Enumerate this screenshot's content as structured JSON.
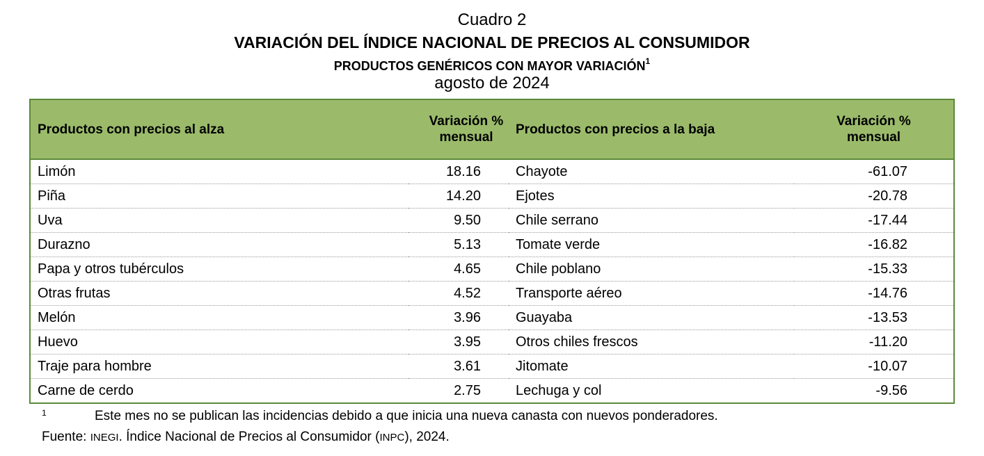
{
  "title": {
    "line1": "Cuadro 2",
    "line2": "VARIACIÓN DEL ÍNDICE NACIONAL DE PRECIOS AL CONSUMIDOR",
    "line3": "PRODUCTOS GENÉRICOS CON MAYOR VARIACIÓN",
    "line3_sup": "1",
    "line4": "agosto de 2024"
  },
  "table": {
    "headers": {
      "up_products": "Productos con precios al alza",
      "up_variation_l1": "Variación %",
      "up_variation_l2": "mensual",
      "down_products": "Productos con precios a la baja",
      "down_variation_l1": "Variación %",
      "down_variation_l2": "mensual"
    },
    "rows": [
      {
        "up": "Limón",
        "up_val": "18.16",
        "down": "Chayote",
        "down_val": "-61.07"
      },
      {
        "up": "Piña",
        "up_val": "14.20",
        "down": "Ejotes",
        "down_val": "-20.78"
      },
      {
        "up": "Uva",
        "up_val": "9.50",
        "down": "Chile serrano",
        "down_val": "-17.44"
      },
      {
        "up": "Durazno",
        "up_val": "5.13",
        "down": "Tomate verde",
        "down_val": "-16.82"
      },
      {
        "up": "Papa y otros tubérculos",
        "up_val": "4.65",
        "down": "Chile poblano",
        "down_val": "-15.33"
      },
      {
        "up": "Otras frutas",
        "up_val": "4.52",
        "down": "Transporte aéreo",
        "down_val": "-14.76"
      },
      {
        "up": "Melón",
        "up_val": "3.96",
        "down": "Guayaba",
        "down_val": "-13.53"
      },
      {
        "up": "Huevo",
        "up_val": "3.95",
        "down": "Otros chiles frescos",
        "down_val": "-11.20"
      },
      {
        "up": "Traje para hombre",
        "up_val": "3.61",
        "down": "Jitomate",
        "down_val": "-10.07"
      },
      {
        "up": "Carne de cerdo",
        "up_val": "2.75",
        "down": "Lechuga y col",
        "down_val": "-9.56"
      }
    ]
  },
  "footnote": {
    "mark": "1",
    "text": "Este mes no se publican las incidencias debido a que inicia una nueva canasta con nuevos ponderadores."
  },
  "source": {
    "label": "Fuente:",
    "org": "INEGI",
    "text_a": ". Índice Nacional de Precios al Consumidor (",
    "abbr": "INPC",
    "text_b": "), 2024."
  },
  "colors": {
    "header_bg": "#9bbb6b",
    "border": "#5b8a3a"
  }
}
